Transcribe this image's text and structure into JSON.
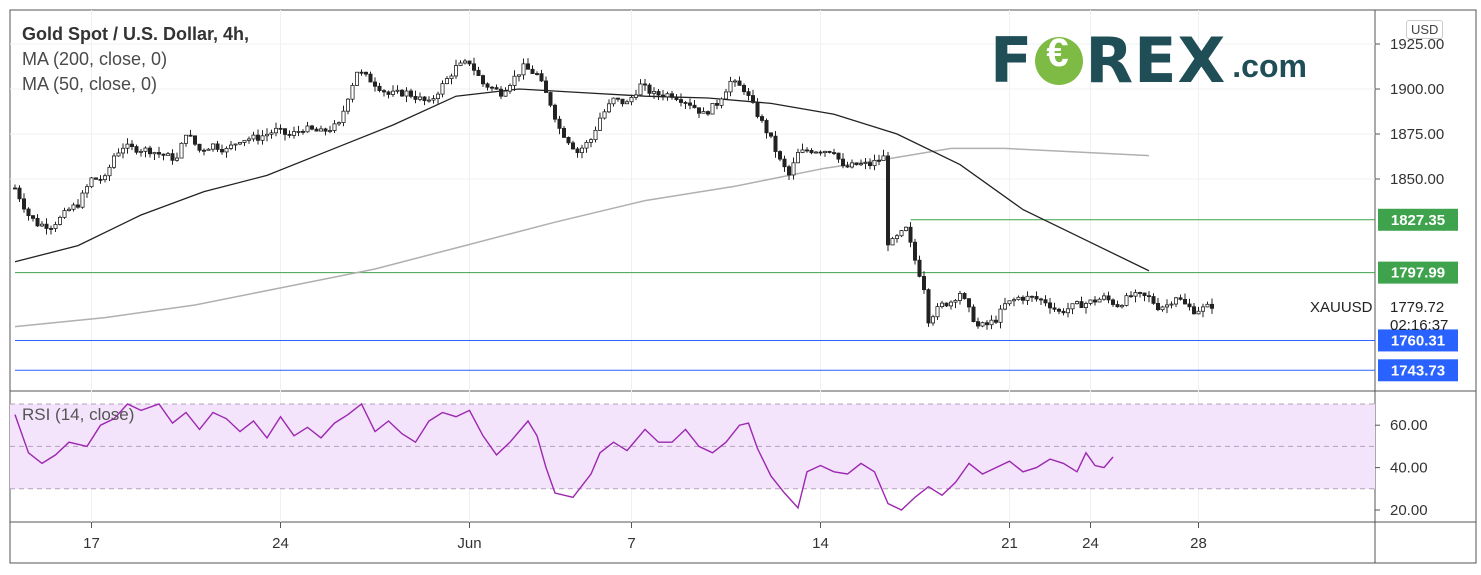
{
  "legend": {
    "title": "Gold Spot / U.S. Dollar, 4h,",
    "ma200": "MA (200, close, 0)",
    "ma50": "MA (50, close, 0)"
  },
  "brand": {
    "part1": "F",
    "part2": "REX",
    "suffix": ".com"
  },
  "currency_label": "USD",
  "symbol_label": "XAUUSD",
  "last_price": "1779.72",
  "countdown": "02:16:37",
  "rsi_label": "RSI (14, close)",
  "colors": {
    "ma200": "#b0b0b0",
    "ma50": "#222222",
    "green_level": "#3fa34d",
    "blue_level": "#2962ff",
    "rsi_line": "#9c27b0",
    "rsi_band": "#f3e3fb",
    "brand": "#1f4e57",
    "brand_accent": "#7dbb44"
  },
  "chart_data": [
    {
      "type": "candlestick",
      "title": "Gold Spot / U.S. Dollar, 4h,",
      "y_ticks": [
        1925,
        1900,
        1875,
        1850
      ],
      "y_tick_labels": [
        "1925.00",
        "1900.00",
        "1875.00",
        "1850.00"
      ],
      "ylim": [
        1747,
        1932
      ],
      "x_ticks": [
        {
          "label": "17",
          "idx": 17
        },
        {
          "label": "24",
          "idx": 59
        },
        {
          "label": "Jun",
          "idx": 101
        },
        {
          "label": "7",
          "idx": 137
        },
        {
          "label": "14",
          "idx": 179
        },
        {
          "label": "21",
          "idx": 221
        },
        {
          "label": "24",
          "idx": 239
        },
        {
          "label": "28",
          "idx": 263
        }
      ],
      "n_bars": 238,
      "levels": [
        {
          "value": 1827.35,
          "label": "1827.35",
          "color": "green",
          "from_idx": 199
        },
        {
          "value": 1797.99,
          "label": "1797.99",
          "color": "green",
          "from_idx": 0
        },
        {
          "value": 1760.31,
          "label": "1760.31",
          "color": "blue",
          "from_idx": 0
        },
        {
          "value": 1743.73,
          "label": "1743.73",
          "color": "blue",
          "from_idx": 0
        }
      ],
      "close_anchors": [
        [
          0,
          1845
        ],
        [
          3,
          1830
        ],
        [
          5,
          1825
        ],
        [
          8,
          1824
        ],
        [
          10,
          1828
        ],
        [
          12,
          1833
        ],
        [
          14,
          1836
        ],
        [
          17,
          1850
        ],
        [
          20,
          1850
        ],
        [
          22,
          1863
        ],
        [
          24,
          1868
        ],
        [
          26,
          1867
        ],
        [
          30,
          1866
        ],
        [
          32,
          1864
        ],
        [
          36,
          1861
        ],
        [
          38,
          1876
        ],
        [
          41,
          1866
        ],
        [
          44,
          1869
        ],
        [
          47,
          1866
        ],
        [
          50,
          1872
        ],
        [
          54,
          1873
        ],
        [
          58,
          1877
        ],
        [
          61,
          1874
        ],
        [
          64,
          1878
        ],
        [
          68,
          1876
        ],
        [
          72,
          1880
        ],
        [
          74,
          1896
        ],
        [
          76,
          1910
        ],
        [
          79,
          1905
        ],
        [
          83,
          1897
        ],
        [
          87,
          1898
        ],
        [
          92,
          1892
        ],
        [
          95,
          1902
        ],
        [
          98,
          1912
        ],
        [
          101,
          1915
        ],
        [
          104,
          1903
        ],
        [
          108,
          1898
        ],
        [
          113,
          1912
        ],
        [
          116,
          1908
        ],
        [
          119,
          1892
        ],
        [
          121,
          1878
        ],
        [
          125,
          1865
        ],
        [
          128,
          1872
        ],
        [
          130,
          1884
        ],
        [
          133,
          1894
        ],
        [
          136,
          1892
        ],
        [
          139,
          1902
        ],
        [
          142,
          1897
        ],
        [
          146,
          1897
        ],
        [
          150,
          1892
        ],
        [
          153,
          1886
        ],
        [
          156,
          1892
        ],
        [
          159,
          1904
        ],
        [
          162,
          1900
        ],
        [
          165,
          1886
        ],
        [
          168,
          1872
        ],
        [
          170,
          1860
        ],
        [
          172,
          1852
        ],
        [
          174,
          1864
        ],
        [
          176,
          1866
        ],
        [
          179,
          1866
        ],
        [
          182,
          1866
        ],
        [
          184,
          1856
        ],
        [
          187,
          1858
        ],
        [
          190,
          1858
        ],
        [
          193,
          1862
        ],
        [
          194,
          1815
        ],
        [
          195,
          1815
        ],
        [
          198,
          1822
        ],
        [
          200,
          1805
        ],
        [
          202,
          1790
        ],
        [
          203,
          1772
        ],
        [
          204,
          1775
        ],
        [
          206,
          1780
        ],
        [
          208,
          1782
        ],
        [
          210,
          1787
        ],
        [
          212,
          1777
        ],
        [
          214,
          1768
        ],
        [
          216,
          1769
        ],
        [
          218,
          1772
        ],
        [
          220,
          1780
        ],
        [
          223,
          1784
        ],
        [
          226,
          1784
        ],
        [
          229,
          1782
        ],
        [
          232,
          1776
        ],
        [
          236,
          1780
        ],
        [
          238,
          1781
        ],
        [
          242,
          1784
        ],
        [
          245,
          1780
        ],
        [
          248,
          1785
        ],
        [
          250,
          1785
        ],
        [
          252,
          1784
        ],
        [
          254,
          1779
        ],
        [
          256,
          1780
        ],
        [
          258,
          1785
        ],
        [
          260,
          1780
        ],
        [
          262,
          1777
        ],
        [
          264,
          1778
        ],
        [
          266,
          1779.72
        ]
      ]
    },
    {
      "type": "line",
      "name": "MA (50, close, 0)",
      "points": [
        [
          0,
          1804
        ],
        [
          14,
          1813
        ],
        [
          28,
          1830
        ],
        [
          42,
          1843
        ],
        [
          56,
          1852
        ],
        [
          70,
          1866
        ],
        [
          84,
          1880
        ],
        [
          98,
          1896
        ],
        [
          112,
          1900
        ],
        [
          126,
          1898
        ],
        [
          140,
          1896
        ],
        [
          154,
          1895
        ],
        [
          168,
          1892
        ],
        [
          182,
          1886
        ],
        [
          196,
          1875
        ],
        [
          210,
          1858
        ],
        [
          224,
          1833
        ],
        [
          238,
          1816
        ],
        [
          252,
          1799
        ]
      ]
    },
    {
      "type": "line",
      "name": "MA (200, close, 0)",
      "points": [
        [
          0,
          1768
        ],
        [
          20,
          1773
        ],
        [
          40,
          1780
        ],
        [
          60,
          1790
        ],
        [
          80,
          1800
        ],
        [
          100,
          1813
        ],
        [
          120,
          1826
        ],
        [
          140,
          1838
        ],
        [
          160,
          1846
        ],
        [
          180,
          1856
        ],
        [
          196,
          1862
        ],
        [
          208,
          1867
        ],
        [
          220,
          1867
        ],
        [
          236,
          1865
        ],
        [
          252,
          1863
        ]
      ]
    },
    {
      "type": "line",
      "name": "RSI (14, close)",
      "y_ticks": [
        20,
        40,
        60
      ],
      "y_tick_labels": [
        "20.00",
        "40.00",
        "60.00"
      ],
      "ylim": [
        15,
        72
      ],
      "band": [
        30,
        70
      ],
      "points": [
        [
          0,
          65
        ],
        [
          3,
          47
        ],
        [
          6,
          42
        ],
        [
          9,
          46
        ],
        [
          12,
          52
        ],
        [
          16,
          50
        ],
        [
          19,
          60
        ],
        [
          22,
          63
        ],
        [
          25,
          70
        ],
        [
          28,
          67
        ],
        [
          32,
          70
        ],
        [
          35,
          61
        ],
        [
          38,
          66
        ],
        [
          41,
          58
        ],
        [
          44,
          66
        ],
        [
          47,
          63
        ],
        [
          50,
          57
        ],
        [
          53,
          62
        ],
        [
          56,
          54
        ],
        [
          59,
          64
        ],
        [
          62,
          55
        ],
        [
          65,
          59
        ],
        [
          68,
          54
        ],
        [
          71,
          61
        ],
        [
          74,
          65
        ],
        [
          77,
          70
        ],
        [
          80,
          57
        ],
        [
          83,
          62
        ],
        [
          86,
          56
        ],
        [
          89,
          52
        ],
        [
          92,
          62
        ],
        [
          95,
          66
        ],
        [
          98,
          64
        ],
        [
          101,
          67
        ],
        [
          104,
          55
        ],
        [
          107,
          46
        ],
        [
          110,
          52
        ],
        [
          114,
          62
        ],
        [
          116,
          55
        ],
        [
          118,
          40
        ],
        [
          120,
          28
        ],
        [
          124,
          26
        ],
        [
          128,
          37
        ],
        [
          130,
          47
        ],
        [
          133,
          52
        ],
        [
          136,
          48
        ],
        [
          140,
          58
        ],
        [
          143,
          52
        ],
        [
          146,
          52
        ],
        [
          149,
          58
        ],
        [
          152,
          50
        ],
        [
          155,
          47
        ],
        [
          158,
          52
        ],
        [
          161,
          60
        ],
        [
          163,
          61
        ],
        [
          165,
          49
        ],
        [
          168,
          36
        ],
        [
          171,
          28
        ],
        [
          174,
          21
        ],
        [
          176,
          38
        ],
        [
          179,
          41
        ],
        [
          182,
          38
        ],
        [
          185,
          37
        ],
        [
          188,
          42
        ],
        [
          191,
          38
        ],
        [
          194,
          23
        ],
        [
          197,
          20
        ],
        [
          200,
          26
        ],
        [
          203,
          31
        ],
        [
          206,
          27
        ],
        [
          209,
          33
        ],
        [
          212,
          42
        ],
        [
          215,
          37
        ],
        [
          218,
          40
        ],
        [
          221,
          43
        ],
        [
          224,
          38
        ],
        [
          227,
          40
        ],
        [
          230,
          44
        ],
        [
          233,
          42
        ],
        [
          236,
          38
        ],
        [
          238,
          47
        ],
        [
          240,
          41
        ],
        [
          242,
          40
        ],
        [
          244,
          45
        ]
      ]
    }
  ]
}
